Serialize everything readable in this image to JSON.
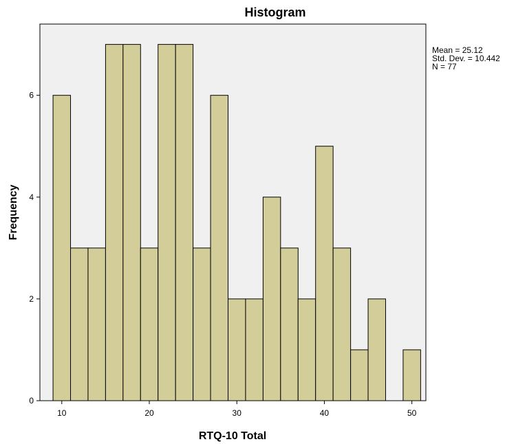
{
  "chart_data": {
    "type": "bar",
    "title": "Histogram",
    "xlabel": "RTQ-10 Total",
    "ylabel": "Frequency",
    "x_ticks": [
      10,
      20,
      30,
      40,
      50
    ],
    "y_ticks": [
      0,
      2,
      4,
      6
    ],
    "xlim": [
      7.5,
      51.6
    ],
    "ylim": [
      0,
      7.4
    ],
    "bin_start": 9,
    "bin_width": 2,
    "values": [
      6,
      3,
      3,
      7,
      7,
      3,
      7,
      7,
      3,
      6,
      2,
      2,
      4,
      3,
      2,
      5,
      3,
      1,
      2,
      0,
      1
    ],
    "bar_color": "#d3cd9a",
    "background_color": "#f0f0f0",
    "stats": [
      "Mean = 25.12",
      "Std. Dev. = 10.442",
      "N = 77"
    ]
  }
}
